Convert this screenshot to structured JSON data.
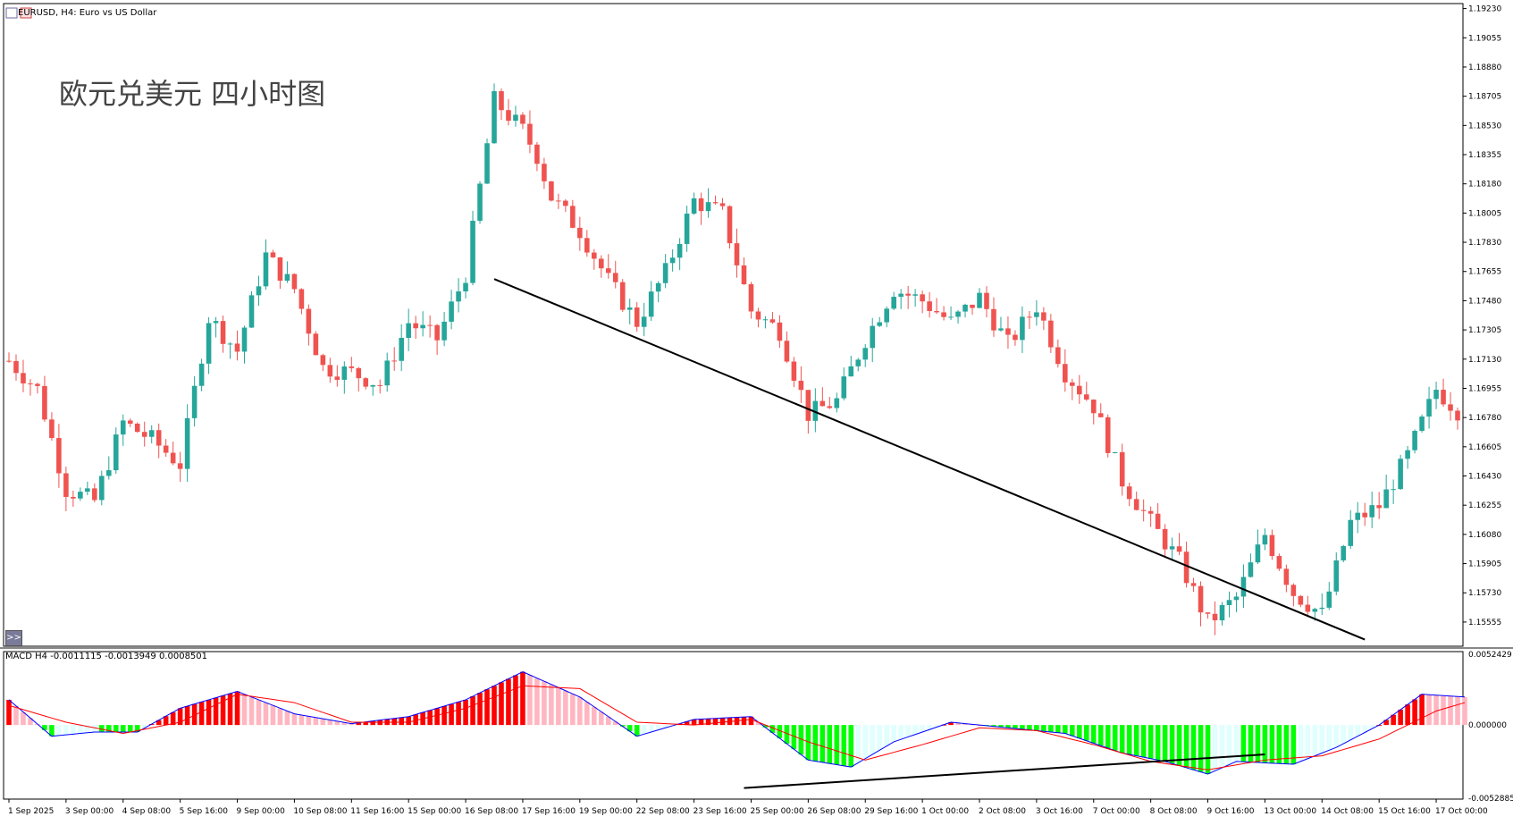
{
  "header": {
    "symbol_label": "EURUSD, H4:  Euro vs US Dollar",
    "annotation": "欧元兑美元 四小时图",
    "expand_button": ">>"
  },
  "macd": {
    "label": "MACD H4 -0.0011115 -0.0013949 0.0008501",
    "scale_labels": [
      "0.0052429",
      "0.000000",
      "-0.0052885"
    ]
  },
  "colors": {
    "bull": "#26a69a",
    "bear": "#ef5350",
    "hist_pos_up": "#ff0000",
    "hist_pos_down": "#ffb6c1",
    "hist_neg_down": "#00ff00",
    "hist_neg_up": "#e0ffff",
    "macd_line": "#0000ff",
    "signal_line": "#ff0000",
    "trendline": "#000000"
  },
  "chart_data": {
    "type": "candlestick",
    "price_axis": [
      "1.19230",
      "1.19055",
      "1.18880",
      "1.18705",
      "1.18530",
      "1.18355",
      "1.18180",
      "1.18005",
      "1.17830",
      "1.17655",
      "1.17480",
      "1.17305",
      "1.17130",
      "1.16955",
      "1.16780",
      "1.16605",
      "1.16430",
      "1.16255",
      "1.16080",
      "1.15905",
      "1.15730",
      "1.15555"
    ],
    "ylim": [
      1.1541,
      1.1926
    ],
    "time_axis": [
      "1 Sep 2025",
      "3 Sep 00:00",
      "4 Sep 08:00",
      "5 Sep 16:00",
      "9 Sep 00:00",
      "10 Sep 08:00",
      "11 Sep 16:00",
      "15 Sep 00:00",
      "16 Sep 08:00",
      "17 Sep 16:00",
      "19 Sep 00:00",
      "22 Sep 08:00",
      "23 Sep 16:00",
      "25 Sep 00:00",
      "26 Sep 08:00",
      "29 Sep 16:00",
      "1 Oct 00:00",
      "2 Oct 08:00",
      "3 Oct 16:00",
      "7 Oct 00:00",
      "8 Oct 08:00",
      "9 Oct 16:00",
      "13 Oct 00:00",
      "14 Oct 08:00",
      "15 Oct 16:00",
      "17 Oct 00:00"
    ],
    "candles_per_label": 8,
    "close_path": [
      [
        0,
        1.1712
      ],
      [
        4,
        1.1695
      ],
      [
        8,
        1.1635
      ],
      [
        12,
        1.1628
      ],
      [
        16,
        1.1675
      ],
      [
        20,
        1.1665
      ],
      [
        24,
        1.165
      ],
      [
        28,
        1.1738
      ],
      [
        32,
        1.1718
      ],
      [
        36,
        1.1775
      ],
      [
        40,
        1.1755
      ],
      [
        44,
        1.1708
      ],
      [
        48,
        1.1705
      ],
      [
        52,
        1.1698
      ],
      [
        56,
        1.1735
      ],
      [
        60,
        1.1725
      ],
      [
        64,
        1.1764
      ],
      [
        68,
        1.1868
      ],
      [
        72,
        1.185
      ],
      [
        74,
        1.1835
      ],
      [
        76,
        1.181
      ],
      [
        80,
        1.179
      ],
      [
        84,
        1.176
      ],
      [
        88,
        1.1735
      ],
      [
        92,
        1.1765
      ],
      [
        96,
        1.1808
      ],
      [
        100,
        1.18
      ],
      [
        104,
        1.1742
      ],
      [
        108,
        1.173
      ],
      [
        112,
        1.168
      ],
      [
        116,
        1.1688
      ],
      [
        120,
        1.1725
      ],
      [
        124,
        1.1755
      ],
      [
        128,
        1.1748
      ],
      [
        132,
        1.1735
      ],
      [
        136,
        1.175
      ],
      [
        140,
        1.1722
      ],
      [
        144,
        1.1745
      ],
      [
        148,
        1.1705
      ],
      [
        152,
        1.1685
      ],
      [
        156,
        1.164
      ],
      [
        160,
        1.1615
      ],
      [
        164,
        1.1592
      ],
      [
        168,
        1.1555
      ],
      [
        172,
        1.157
      ],
      [
        176,
        1.1608
      ],
      [
        180,
        1.1573
      ],
      [
        184,
        1.156
      ],
      [
        188,
        1.1615
      ],
      [
        192,
        1.1625
      ],
      [
        196,
        1.1655
      ],
      [
        200,
        1.1695
      ],
      [
        204,
        1.1678
      ]
    ],
    "trendline_price": {
      "from": {
        "bar": 68,
        "price": 1.1761
      },
      "to": {
        "bar": 190,
        "price": 1.1545
      }
    },
    "macd": {
      "ylim": [
        -0.0052885,
        0.0052429
      ],
      "macd_path": [
        [
          0,
          0.0018
        ],
        [
          6,
          -0.0008
        ],
        [
          12,
          -0.0005
        ],
        [
          18,
          -0.0005
        ],
        [
          24,
          0.0012
        ],
        [
          32,
          0.0024
        ],
        [
          40,
          0.0008
        ],
        [
          48,
          0.0001
        ],
        [
          56,
          0.0006
        ],
        [
          64,
          0.0018
        ],
        [
          72,
          0.0038
        ],
        [
          80,
          0.002
        ],
        [
          88,
          -0.0008
        ],
        [
          96,
          0.0004
        ],
        [
          104,
          0.0006
        ],
        [
          112,
          -0.0025
        ],
        [
          118,
          -0.003
        ],
        [
          124,
          -0.0012
        ],
        [
          132,
          0.0002
        ],
        [
          140,
          -0.0002
        ],
        [
          148,
          -0.0006
        ],
        [
          156,
          -0.002
        ],
        [
          162,
          -0.0026
        ],
        [
          168,
          -0.0035
        ],
        [
          172,
          -0.0026
        ],
        [
          180,
          -0.0028
        ],
        [
          186,
          -0.0016
        ],
        [
          192,
          0.0
        ],
        [
          198,
          0.0022
        ],
        [
          204,
          0.002
        ]
      ],
      "signal_path": [
        [
          0,
          0.0014
        ],
        [
          8,
          0.0002
        ],
        [
          16,
          -0.0006
        ],
        [
          24,
          0.0002
        ],
        [
          32,
          0.0022
        ],
        [
          40,
          0.0016
        ],
        [
          48,
          0.0002
        ],
        [
          56,
          0.0002
        ],
        [
          64,
          0.0012
        ],
        [
          72,
          0.0028
        ],
        [
          80,
          0.0026
        ],
        [
          88,
          0.0002
        ],
        [
          96,
          0.0
        ],
        [
          104,
          0.0004
        ],
        [
          112,
          -0.0012
        ],
        [
          120,
          -0.0025
        ],
        [
          128,
          -0.0014
        ],
        [
          136,
          -0.0002
        ],
        [
          144,
          -0.0004
        ],
        [
          152,
          -0.0014
        ],
        [
          160,
          -0.0026
        ],
        [
          168,
          -0.0032
        ],
        [
          176,
          -0.0025
        ],
        [
          184,
          -0.0022
        ],
        [
          192,
          -0.001
        ],
        [
          200,
          0.001
        ],
        [
          204,
          0.0016
        ]
      ],
      "trendline": {
        "from": {
          "bar": 103,
          "value": -0.0045
        },
        "to": {
          "bar": 176,
          "value": -0.0021
        }
      }
    }
  }
}
